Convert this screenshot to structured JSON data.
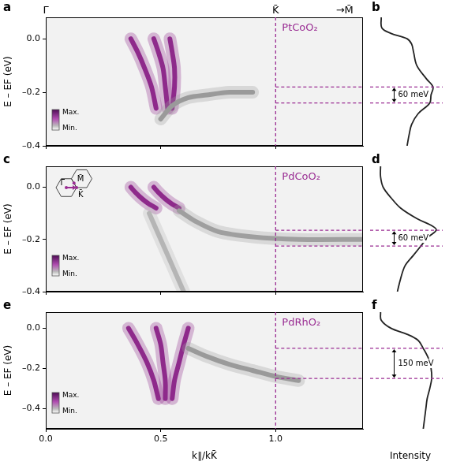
{
  "chart_data": [
    {
      "panel": "a",
      "type": "line",
      "sample": "PtCoO₂",
      "top_labels": [
        {
          "x": 0.0,
          "text": "Γ̄"
        },
        {
          "x": 1.0,
          "text": "K̄"
        },
        {
          "x": 1.3,
          "text": "→M̄"
        }
      ],
      "colorbar_labels": [
        "Max.",
        "Min."
      ],
      "vline": 1.0,
      "y_label": "E – EF (eV)",
      "series": [
        {
          "color": "#9a9a9a",
          "x": [
            0.5,
            0.55,
            0.62,
            0.7,
            0.8,
            0.9
          ],
          "values": [
            -0.3,
            -0.25,
            -0.22,
            -0.21,
            -0.2,
            -0.2
          ]
        },
        {
          "color": "#8e2a8c",
          "x": [
            0.37,
            0.4,
            0.43,
            0.46,
            0.48
          ],
          "values": [
            0.0,
            -0.05,
            -0.11,
            -0.18,
            -0.26
          ]
        },
        {
          "color": "#8e2a8c",
          "x": [
            0.47,
            0.49,
            0.51,
            0.52,
            0.53
          ],
          "values": [
            0.0,
            -0.05,
            -0.11,
            -0.18,
            -0.26
          ]
        },
        {
          "color": "#8e2a8c",
          "x": [
            0.54,
            0.55,
            0.56,
            0.56,
            0.55
          ],
          "values": [
            0.0,
            -0.05,
            -0.11,
            -0.18,
            -0.26
          ]
        }
      ],
      "xlim": [
        0,
        1.38
      ],
      "ylim": [
        -0.4,
        0.08
      ],
      "xticks": [
        0,
        0.5,
        1
      ],
      "yticks": [
        {
          "value": -0.4,
          "label": "–0.4"
        },
        {
          "value": -0.2,
          "label": "–0.2"
        },
        {
          "value": 0,
          "label": "0.0"
        }
      ],
      "tick_labels": "y",
      "grid": false
    },
    {
      "panel": "b",
      "type": "line",
      "series": [
        {
          "color": "#222222",
          "x": [
            0.05,
            0.06,
            0.2,
            0.45,
            0.52,
            0.55,
            0.6,
            0.75,
            0.85,
            0.82,
            0.8,
            0.62,
            0.52,
            0.48,
            0.45
          ],
          "values": [
            0.08,
            0.04,
            0.02,
            0.0,
            -0.02,
            -0.05,
            -0.1,
            -0.15,
            -0.18,
            -0.21,
            -0.24,
            -0.28,
            -0.32,
            -0.36,
            -0.4
          ]
        }
      ],
      "xlim": [
        0,
        1
      ],
      "ylim": [
        -0.4,
        0.08
      ],
      "tick_labels": false,
      "grid": false,
      "energy_markers": [
        -0.18,
        -0.24
      ],
      "marker_label": "60 meV"
    },
    {
      "panel": "c",
      "type": "line",
      "sample": "PdCoO₂",
      "inset_labels": [
        "Γ̄",
        "M̄",
        "K̄"
      ],
      "colorbar_labels": [
        "Max.",
        "Min."
      ],
      "vline": 1.0,
      "y_label": "E – EF (eV)",
      "series": [
        {
          "color": "#b5b5b5",
          "x": [
            0.45,
            0.5,
            0.55,
            0.6
          ],
          "values": [
            -0.1,
            -0.2,
            -0.3,
            -0.4
          ]
        },
        {
          "color": "#a0a0a0",
          "x": [
            0.58,
            0.65,
            0.75,
            0.9,
            1.1,
            1.38
          ],
          "values": [
            -0.09,
            -0.13,
            -0.17,
            -0.19,
            -0.2,
            -0.2
          ]
        },
        {
          "color": "#8e2a8c",
          "x": [
            0.37,
            0.39,
            0.42,
            0.45,
            0.48
          ],
          "values": [
            0.0,
            -0.02,
            -0.045,
            -0.065,
            -0.08
          ]
        },
        {
          "color": "#8e2a8c",
          "x": [
            0.47,
            0.49,
            0.52,
            0.55,
            0.58
          ],
          "values": [
            0.0,
            -0.02,
            -0.045,
            -0.065,
            -0.08
          ]
        }
      ],
      "xlim": [
        0,
        1.38
      ],
      "ylim": [
        -0.4,
        0.08
      ],
      "xticks": [
        0,
        0.5,
        1
      ],
      "yticks": [
        {
          "value": -0.4,
          "label": "–0.4"
        },
        {
          "value": -0.2,
          "label": "–0.2"
        },
        {
          "value": 0,
          "label": "0.0"
        }
      ],
      "tick_labels": "y",
      "grid": false
    },
    {
      "panel": "d",
      "type": "line",
      "series": [
        {
          "color": "#222222",
          "x": [
            0.04,
            0.04,
            0.08,
            0.2,
            0.35,
            0.6,
            0.85,
            0.9,
            0.78,
            0.68,
            0.55,
            0.42,
            0.35,
            0.3
          ],
          "values": [
            0.08,
            0.04,
            0.0,
            -0.04,
            -0.08,
            -0.12,
            -0.15,
            -0.165,
            -0.19,
            -0.22,
            -0.26,
            -0.3,
            -0.35,
            -0.4
          ]
        }
      ],
      "xlim": [
        0,
        1
      ],
      "ylim": [
        -0.4,
        0.08
      ],
      "tick_labels": false,
      "grid": false,
      "energy_markers": [
        -0.165,
        -0.225
      ],
      "marker_label": "60 meV"
    },
    {
      "panel": "e",
      "type": "line",
      "sample": "PdRhO₂",
      "colorbar_labels": [
        "Max.",
        "Min."
      ],
      "vline": 1.0,
      "y_label": "E – EF (eV)",
      "x_label": "k∥/kK̄",
      "series": [
        {
          "color": "#9a9a9a",
          "x": [
            0.62,
            0.7,
            0.8,
            0.9,
            1.0,
            1.1
          ],
          "values": [
            -0.1,
            -0.14,
            -0.18,
            -0.21,
            -0.24,
            -0.26
          ]
        },
        {
          "color": "#8e2a8c",
          "x": [
            0.36,
            0.4,
            0.44,
            0.47,
            0.49
          ],
          "values": [
            0.0,
            -0.08,
            -0.17,
            -0.26,
            -0.35
          ]
        },
        {
          "color": "#8e2a8c",
          "x": [
            0.48,
            0.5,
            0.51,
            0.52,
            0.52
          ],
          "values": [
            0.0,
            -0.08,
            -0.17,
            -0.26,
            -0.35
          ]
        },
        {
          "color": "#8e2a8c",
          "x": [
            0.62,
            0.6,
            0.58,
            0.56,
            0.55
          ],
          "values": [
            0.0,
            -0.08,
            -0.17,
            -0.26,
            -0.35
          ]
        }
      ],
      "xlim": [
        0,
        1.38
      ],
      "ylim": [
        -0.5,
        0.08
      ],
      "xticks": [
        {
          "value": 0,
          "label": "0.0"
        },
        0.5,
        {
          "value": 1,
          "label": "1.0"
        }
      ],
      "yticks": [
        {
          "value": -0.4,
          "label": "–0.4"
        },
        {
          "value": -0.2,
          "label": "–0.2"
        },
        {
          "value": 0,
          "label": "0.0"
        }
      ],
      "grid": false
    },
    {
      "panel": "f",
      "type": "line",
      "x_label": "Intensity",
      "series": [
        {
          "color": "#222222",
          "x": [
            0.04,
            0.05,
            0.2,
            0.45,
            0.62,
            0.7,
            0.78,
            0.82,
            0.83,
            0.8,
            0.76,
            0.74,
            0.72,
            0.7
          ],
          "values": [
            0.08,
            0.04,
            0.0,
            -0.03,
            -0.06,
            -0.1,
            -0.15,
            -0.2,
            -0.25,
            -0.3,
            -0.35,
            -0.4,
            -0.45,
            -0.5
          ]
        }
      ],
      "xlim": [
        0,
        1
      ],
      "ylim": [
        -0.5,
        0.08
      ],
      "tick_labels": false,
      "grid": false,
      "energy_markers": [
        -0.1,
        -0.25
      ],
      "marker_label": "150 meV"
    }
  ]
}
